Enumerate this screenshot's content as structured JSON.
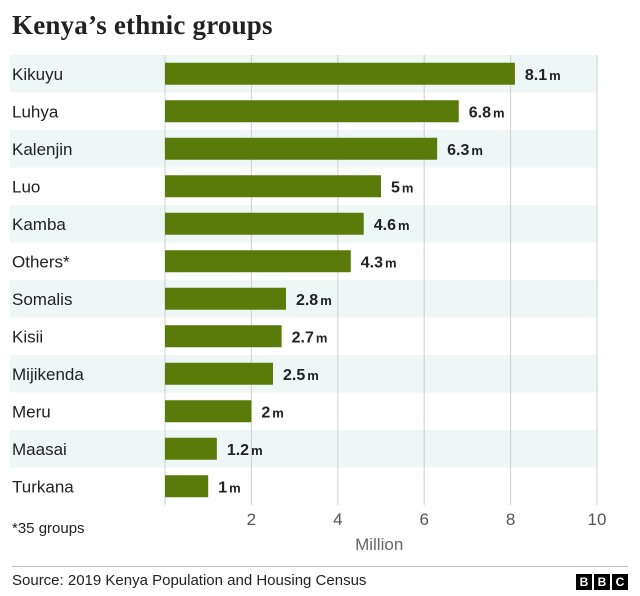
{
  "title": "Kenya’s ethnic groups",
  "note": "*35 groups",
  "source": "Source: 2019 Kenya Population and Housing Census",
  "logo": [
    "B",
    "B",
    "C"
  ],
  "colors": {
    "bar": "#5a7a0a",
    "band": "#eef6f6",
    "grid": "#cfcfcf"
  },
  "chart_data": {
    "type": "bar",
    "orientation": "horizontal",
    "title": "Kenya’s ethnic groups",
    "xlabel": "Million",
    "ylabel": "",
    "xlim": [
      0,
      10
    ],
    "xticks": [
      2,
      4,
      6,
      8,
      10
    ],
    "grid": true,
    "value_unit_suffix": "m",
    "categories": [
      "Kikuyu",
      "Luhya",
      "Kalenjin",
      "Luo",
      "Kamba",
      "Others*",
      "Somalis",
      "Kisii",
      "Mijikenda",
      "Meru",
      "Maasai",
      "Turkana"
    ],
    "values": [
      8.1,
      6.8,
      6.3,
      5,
      4.6,
      4.3,
      2.8,
      2.7,
      2.5,
      2,
      1.2,
      1
    ],
    "value_labels": [
      "8.1",
      "6.8",
      "6.3",
      "5",
      "4.6",
      "4.3",
      "2.8",
      "2.7",
      "2.5",
      "2",
      "1.2",
      "1"
    ]
  }
}
